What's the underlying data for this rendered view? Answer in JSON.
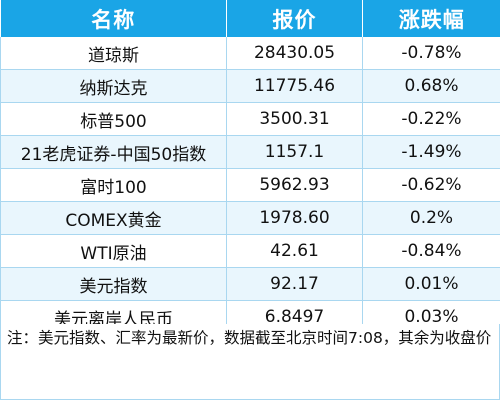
{
  "table": {
    "headers": [
      "名称",
      "报价",
      "涨跌幅"
    ],
    "rows": [
      {
        "name": "道琼斯",
        "price": "28430.05",
        "change": "-0.78%"
      },
      {
        "name": "纳斯达克",
        "price": "11775.46",
        "change": "0.68%"
      },
      {
        "name": "标普500",
        "price": "3500.31",
        "change": "-0.22%"
      },
      {
        "name": "21老虎证券-中国50指数",
        "price": "1157.1",
        "change": "-1.49%"
      },
      {
        "name": "富时100",
        "price": "5962.93",
        "change": "-0.62%"
      },
      {
        "name": "COMEX黄金",
        "price": "1978.60",
        "change": "0.2%"
      },
      {
        "name": "WTI原油",
        "price": "42.61",
        "change": "-0.84%"
      },
      {
        "name": "美元指数",
        "price": "92.17",
        "change": "0.01%"
      },
      {
        "name": "美元离岸人民币",
        "price": "6.8497",
        "change": "0.03%"
      }
    ]
  },
  "footnote": "注：美元指数、汇率为最新价，数据截至北京时间7:08，其余为收盘价"
}
